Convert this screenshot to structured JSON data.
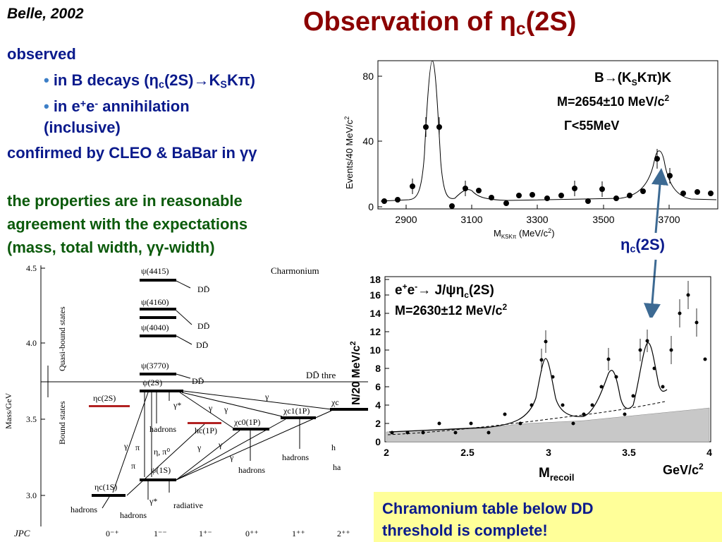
{
  "header": {
    "tag": "Belle, 2002",
    "title": "Observation of ηc(2S)"
  },
  "bullets": {
    "observed": "observed",
    "item1": "in B decays (ηc(2S)→KSKπ)",
    "item2_line1": "in e+e- annihilation",
    "item2_line2": "(inclusive)",
    "confirmed": "confirmed by CLEO & BaBar in γγ",
    "prop1": "the properties are in reasonable",
    "prop2": "agreement with the expectations",
    "prop3": "(mass, total width, γγ-width)"
  },
  "top_plot": {
    "ylabel": "Events/40 MeV/c²",
    "xlabel": "MKSKπ (MeV/c²)",
    "y_ticks": [
      "0",
      "40",
      "80"
    ],
    "x_ticks": [
      "2900",
      "3100",
      "3300",
      "3500",
      "3700"
    ],
    "label_decay": "B→(KSKπ)K",
    "label_mass": "M=2654±10 MeV/c²",
    "label_width": "Γ<55MeV",
    "arrow_label": "ηc(2S)"
  },
  "bottom_plot": {
    "ylabel": "N/20 MeV/c²",
    "xlabel": "Mrecoil",
    "xunit": "GeV/c²",
    "y_ticks": [
      "0",
      "2",
      "4",
      "6",
      "8",
      "10",
      "12",
      "14",
      "16",
      "18"
    ],
    "x_ticks": [
      "2",
      "2.5",
      "3",
      "3.5",
      "4"
    ],
    "label_process": "e+e-→ J/ψηc(2S)",
    "label_mass": "M=2630±12 MeV/c²"
  },
  "charmonium": {
    "title": "Charmonium",
    "ylabel": "Mass/GeV",
    "y_ticks": [
      "4.5",
      "4.0",
      "3.5",
      "3.0"
    ],
    "jpc_label": "JPC",
    "jpc": [
      "0⁻⁺",
      "1⁻⁻",
      "1⁺⁻",
      "0⁺⁺",
      "1⁺⁺",
      "2⁺⁺"
    ],
    "quasi_bound": "Quasi-bound states",
    "bound": "Bound states",
    "threshold": "DD̄ thre",
    "states": {
      "psi4415": "ψ(4415)",
      "psi4160": "ψ(4160)",
      "psi4040": "ψ(4040)",
      "psi3770": "ψ(3770)",
      "psi2s": "ψ(2S)",
      "psi1s": "ψ(1S)",
      "etac2s": "ηc(2S)",
      "etac1s": "ηc(1S)",
      "hc1p": "hc(1P)",
      "chi0": "χc0(1P)",
      "chi1": "χc1(1P)",
      "chi2": "χc"
    },
    "dd": "DD̄",
    "decays": {
      "hadrons": "hadrons",
      "radiative": "radiative",
      "gamma": "γ",
      "gammastar": "γ*",
      "pi": "π",
      "eta_pi0": "η, π⁰",
      "ha": "ha",
      "h": "h"
    }
  },
  "note": {
    "line1": "Chramonium table below DD",
    "line2": "threshold is complete!"
  }
}
